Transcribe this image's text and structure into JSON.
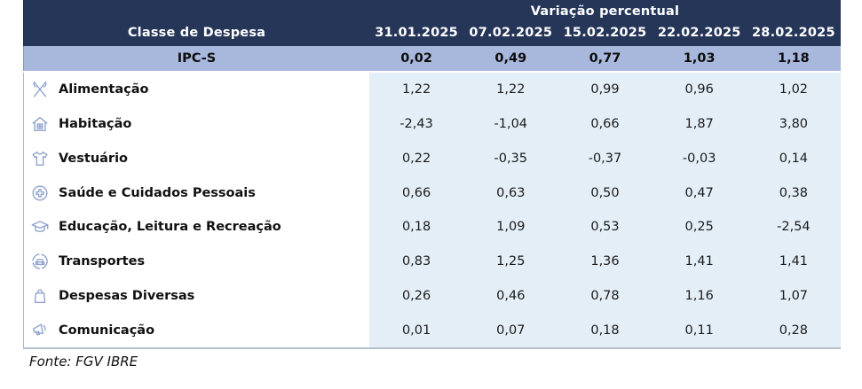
{
  "table": {
    "variation_header": "Variação percentual",
    "class_header": "Classe de Despesa",
    "dates": [
      "31.01.2025",
      "07.02.2025",
      "15.02.2025",
      "22.02.2025",
      "28.02.2025"
    ],
    "ipcs": {
      "label": "IPC-S",
      "values": [
        "0,02",
        "0,49",
        "0,77",
        "1,03",
        "1,18"
      ]
    },
    "rows": [
      {
        "icon": "cutlery-icon",
        "label": "Alimentação",
        "values": [
          "1,22",
          "1,22",
          "0,99",
          "0,96",
          "1,02"
        ]
      },
      {
        "icon": "house-icon",
        "label": "Habitação",
        "values": [
          "-2,43",
          "-1,04",
          "0,66",
          "1,87",
          "3,80"
        ]
      },
      {
        "icon": "tshirt-icon",
        "label": "Vestuário",
        "values": [
          "0,22",
          "-0,35",
          "-0,37",
          "-0,03",
          "0,14"
        ]
      },
      {
        "icon": "medical-cross-icon",
        "label": "Saúde e Cuidados Pessoais",
        "values": [
          "0,66",
          "0,63",
          "0,50",
          "0,47",
          "0,38"
        ]
      },
      {
        "icon": "graduation-cap-icon",
        "label": "Educação, Leitura e Recreação",
        "values": [
          "0,18",
          "1,09",
          "0,53",
          "0,25",
          "-2,54"
        ]
      },
      {
        "icon": "car-icon",
        "label": "Transportes",
        "values": [
          "0,83",
          "1,25",
          "1,36",
          "1,41",
          "1,41"
        ]
      },
      {
        "icon": "shopping-bag-icon",
        "label": "Despesas Diversas",
        "values": [
          "0,26",
          "0,46",
          "0,78",
          "1,16",
          "1,07"
        ]
      },
      {
        "icon": "megaphone-icon",
        "label": "Comunicação",
        "values": [
          "0,01",
          "0,07",
          "0,18",
          "0,11",
          "0,28"
        ]
      }
    ]
  },
  "footer": {
    "source": "Fonte: FGV IBRE"
  },
  "colors": {
    "header_bg": "#263659",
    "ipcs_bg": "#a8b8dc",
    "data_bg": "#e3eef7",
    "icon": "#8fa3cd",
    "header_text": "#ffffff"
  },
  "chart_data": {
    "type": "table",
    "title": "Variação percentual",
    "categories": [
      "31.01.2025",
      "07.02.2025",
      "15.02.2025",
      "22.02.2025",
      "28.02.2025"
    ],
    "row_header": "Classe de Despesa",
    "series": [
      {
        "name": "IPC-S",
        "values": [
          0.02,
          0.49,
          0.77,
          1.03,
          1.18
        ]
      },
      {
        "name": "Alimentação",
        "values": [
          1.22,
          1.22,
          0.99,
          0.96,
          1.02
        ]
      },
      {
        "name": "Habitação",
        "values": [
          -2.43,
          -1.04,
          0.66,
          1.87,
          3.8
        ]
      },
      {
        "name": "Vestuário",
        "values": [
          0.22,
          -0.35,
          -0.37,
          -0.03,
          0.14
        ]
      },
      {
        "name": "Saúde e Cuidados Pessoais",
        "values": [
          0.66,
          0.63,
          0.5,
          0.47,
          0.38
        ]
      },
      {
        "name": "Educação, Leitura e Recreação",
        "values": [
          0.18,
          1.09,
          0.53,
          0.25,
          -2.54
        ]
      },
      {
        "name": "Transportes",
        "values": [
          0.83,
          1.25,
          1.36,
          1.41,
          1.41
        ]
      },
      {
        "name": "Despesas Diversas",
        "values": [
          0.26,
          0.46,
          0.78,
          1.16,
          1.07
        ]
      },
      {
        "name": "Comunicação",
        "values": [
          0.01,
          0.07,
          0.18,
          0.11,
          0.28
        ]
      }
    ],
    "source": "Fonte: FGV IBRE"
  }
}
